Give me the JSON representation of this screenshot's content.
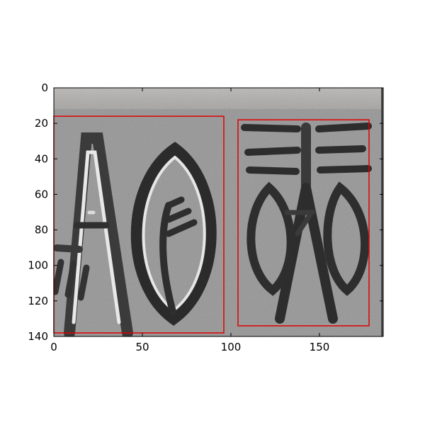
{
  "chart_data": {
    "type": "image",
    "title": "",
    "xlabel": "",
    "ylabel": "",
    "xlim": [
      0,
      186
    ],
    "ylim": [
      140,
      0
    ],
    "y_axis_inverted": true,
    "grid": false,
    "legend": "none",
    "x_ticks": [
      0,
      50,
      100,
      150
    ],
    "y_ticks": [
      0,
      20,
      40,
      60,
      80,
      100,
      120,
      140
    ],
    "boxes": [
      {
        "x0": 0,
        "y0": 16,
        "x1": 96,
        "y1": 138
      },
      {
        "x0": 104,
        "y0": 18,
        "x1": 178,
        "y1": 134
      }
    ],
    "colors": {
      "box": "#e00000",
      "axes": "#000000",
      "background": "#ffffff"
    }
  },
  "image": {
    "description_icon": "stone-seal-inscription-icon"
  }
}
